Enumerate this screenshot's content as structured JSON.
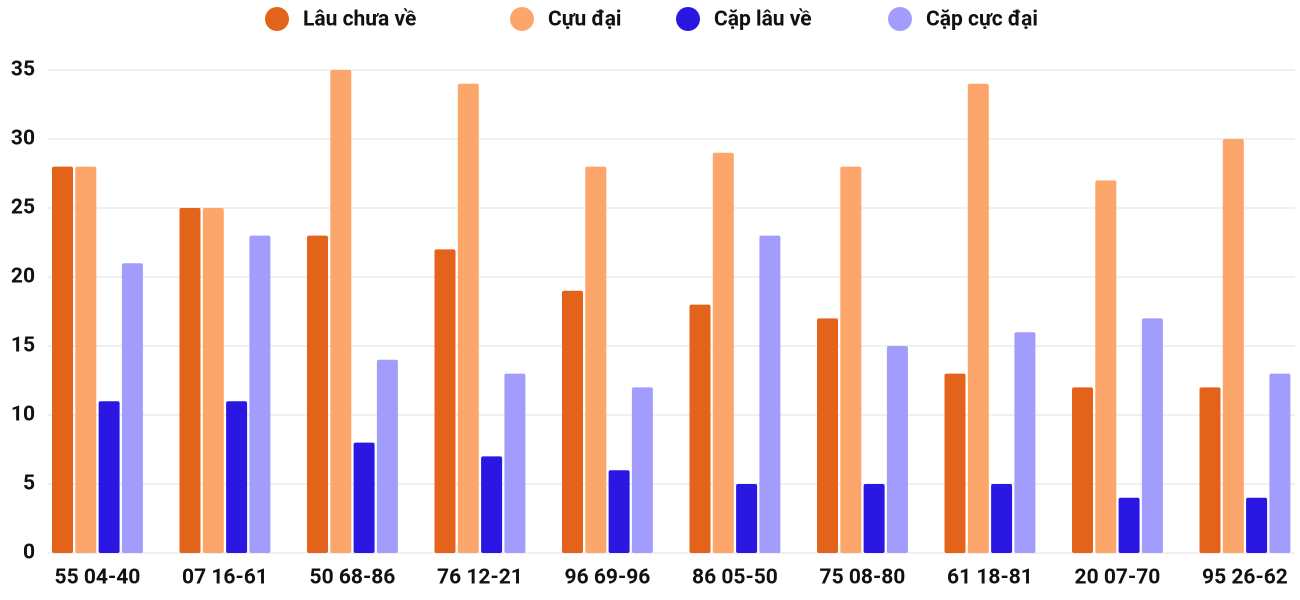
{
  "chart_data": {
    "type": "bar",
    "categories": [
      "55 04-40",
      "07 16-61",
      "50 68-86",
      "76 12-21",
      "96 69-96",
      "86 05-50",
      "75 08-80",
      "61 18-81",
      "20 07-70",
      "95 26-62"
    ],
    "series": [
      {
        "name": "Lâu chưa về",
        "color": "#e3631a",
        "values": [
          28,
          25,
          23,
          22,
          19,
          18,
          17,
          13,
          12,
          12
        ]
      },
      {
        "name": "Cựu đại",
        "color": "#fda66b",
        "values": [
          28,
          25,
          35,
          34,
          28,
          29,
          28,
          34,
          27,
          30
        ]
      },
      {
        "name": "Cặp lâu về",
        "color": "#2b17e2",
        "values": [
          11,
          11,
          8,
          7,
          6,
          5,
          5,
          5,
          4,
          4
        ]
      },
      {
        "name": "Cặp cực đại",
        "color": "#a29cfc",
        "values": [
          21,
          23,
          14,
          13,
          12,
          23,
          15,
          16,
          17,
          13
        ]
      }
    ],
    "ylim": [
      0,
      35
    ],
    "yticks": [
      0,
      5,
      10,
      15,
      20,
      25,
      30,
      35
    ],
    "grid": true,
    "legend": "top"
  }
}
